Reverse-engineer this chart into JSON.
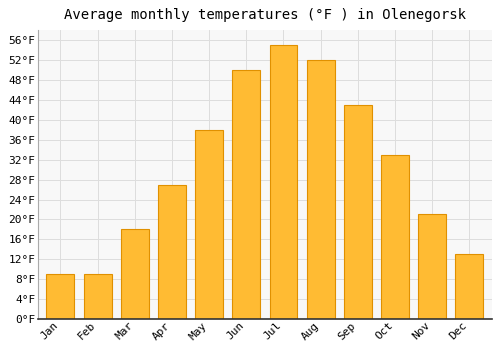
{
  "title": "Average monthly temperatures (°F ) in Olenegorsk",
  "months": [
    "Jan",
    "Feb",
    "Mar",
    "Apr",
    "May",
    "Jun",
    "Jul",
    "Aug",
    "Sep",
    "Oct",
    "Nov",
    "Dec"
  ],
  "values": [
    9,
    9,
    18,
    27,
    38,
    50,
    55,
    52,
    43,
    33,
    21,
    13
  ],
  "bar_color": "#FFBB33",
  "bar_edge_color": "#E09000",
  "background_color": "#FFFFFF",
  "plot_bg_color": "#F8F8F8",
  "grid_color": "#DDDDDD",
  "ylim": [
    0,
    58
  ],
  "yticks": [
    0,
    4,
    8,
    12,
    16,
    20,
    24,
    28,
    32,
    36,
    40,
    44,
    48,
    52,
    56
  ],
  "ytick_labels": [
    "0°F",
    "4°F",
    "8°F",
    "12°F",
    "16°F",
    "20°F",
    "24°F",
    "28°F",
    "32°F",
    "36°F",
    "40°F",
    "44°F",
    "48°F",
    "52°F",
    "56°F"
  ],
  "title_fontsize": 10,
  "tick_fontsize": 8,
  "font_family": "monospace"
}
